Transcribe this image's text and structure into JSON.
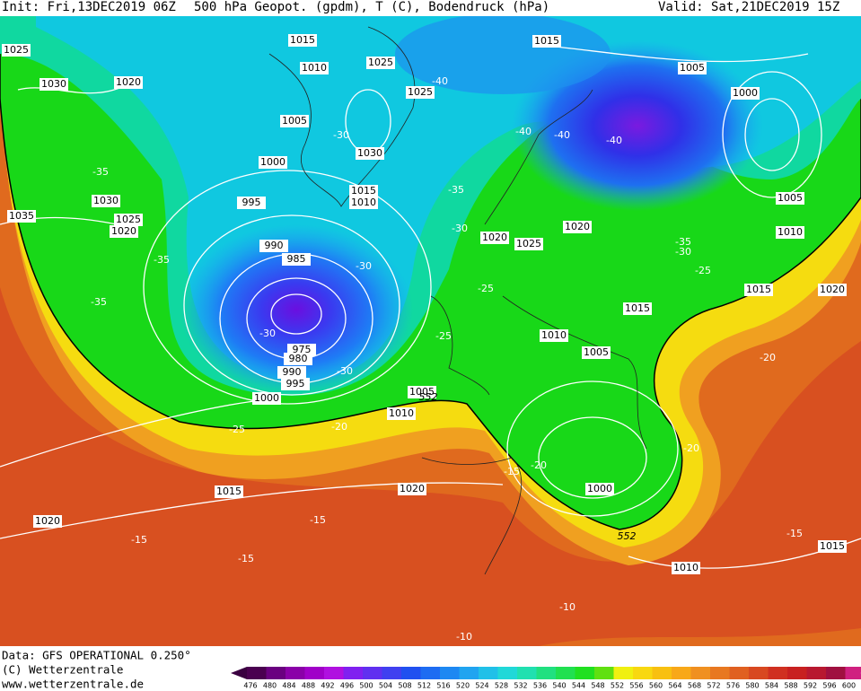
{
  "header": {
    "init": "Init: Fri,13DEC2019 06Z",
    "title": "500 hPa Geopot. (gpdm), T (C), Bodendruck (hPa)",
    "valid": "Valid: Sat,21DEC2019 15Z"
  },
  "footer": {
    "data": "Data: GFS OPERATIONAL 0.250°",
    "copyright": "(C) Wetterzentrale",
    "url": "www.wetterzentrale.de"
  },
  "colorbar": {
    "labels": [
      "476",
      "480",
      "484",
      "488",
      "492",
      "496",
      "500",
      "504",
      "508",
      "512",
      "516",
      "520",
      "524",
      "528",
      "532",
      "536",
      "540",
      "544",
      "548",
      "552",
      "556",
      "560",
      "564",
      "568",
      "572",
      "576",
      "580",
      "584",
      "588",
      "592",
      "596",
      "600"
    ]
  },
  "map": {
    "isobar_labels": [
      "1015",
      "1010",
      "1025",
      "1025",
      "1030",
      "1020",
      "1005",
      "1030",
      "1000",
      "1015",
      "1010",
      "995",
      "1030",
      "1025",
      "1020",
      "1035",
      "990",
      "985",
      "975",
      "980",
      "990",
      "995",
      "1000",
      "1005",
      "1010",
      "1025",
      "1015",
      "1005",
      "1000",
      "1020",
      "1020",
      "1025",
      "1005",
      "1010",
      "1015",
      "1020",
      "1015",
      "1010",
      "1005",
      "1000",
      "1015",
      "1020",
      "1020",
      "1010",
      "1015"
    ],
    "temperature_labels": [
      "-40",
      "-30",
      "-35",
      "-40",
      "-40",
      "-40",
      "-35",
      "-30",
      "-35",
      "-30",
      "-35",
      "-25",
      "-35",
      "-30",
      "-25",
      "-30",
      "-25",
      "-30",
      "-20",
      "-25",
      "-20",
      "-20",
      "-15",
      "-20",
      "-15",
      "-15",
      "-15",
      "-15",
      "-10",
      "-10"
    ],
    "height_labels": [
      "552",
      "552"
    ]
  }
}
